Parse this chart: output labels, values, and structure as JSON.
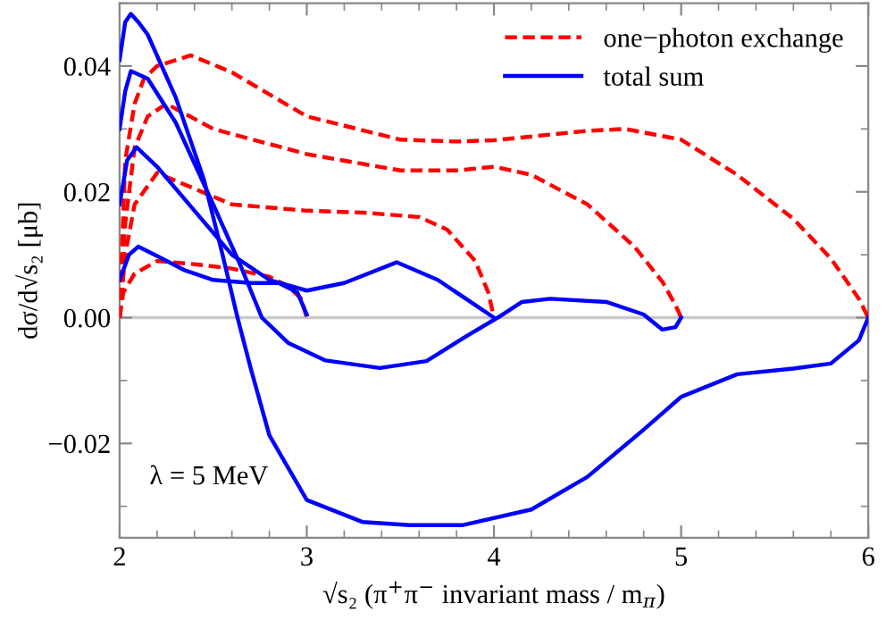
{
  "chart_data": {
    "type": "line",
    "xlabel": "√s₂ (π$^{+}$π$^{−}$ invariant mass / m$_{π}$)",
    "ylabel": "dσ/d√s₂ [μb]",
    "xlim": [
      2,
      6
    ],
    "ylim": [
      -0.035,
      0.05
    ],
    "xticks": [
      2,
      3,
      4,
      5,
      6
    ],
    "yticks": [
      {
        "value": -0.02,
        "label": "−0.02"
      },
      {
        "value": 0,
        "label": "0.00"
      },
      {
        "value": 0.02,
        "label": "0.02"
      },
      {
        "value": 0.04,
        "label": "0.04"
      }
    ],
    "legend": "top right",
    "grid": false,
    "ref_lines": [
      {
        "axis": "y",
        "value": 0,
        "color": "#c8c8c8"
      }
    ],
    "annotations": [
      {
        "text": "λ = 5 MeV"
      }
    ],
    "series": [
      {
        "name": "one−photon exchange",
        "color": "#ff0000",
        "line_style": "dashed",
        "x": [
          2,
          2.03,
          2.08,
          2.13,
          2.2,
          2.38,
          2.6,
          3.0,
          3.5,
          3.8,
          4.0,
          4.5,
          4.7,
          5.0,
          5.3,
          5.6,
          5.8,
          5.95,
          6
        ],
        "values": [
          0,
          0.025,
          0.034,
          0.038,
          0.04,
          0.0417,
          0.039,
          0.032,
          0.0283,
          0.028,
          0.0282,
          0.0297,
          0.03,
          0.0283,
          0.0227,
          0.0157,
          0.0094,
          0.003,
          0
        ]
      },
      {
        "color": "#ff0000",
        "line_style": "dashed",
        "x": [
          2,
          2.03,
          2.08,
          2.15,
          2.25,
          2.5,
          3.0,
          3.5,
          3.8,
          4.0,
          4.2,
          4.5,
          4.75,
          4.9,
          4.97,
          5
        ],
        "values": [
          0,
          0.015,
          0.027,
          0.032,
          0.034,
          0.03,
          0.026,
          0.0234,
          0.0234,
          0.024,
          0.0227,
          0.018,
          0.0113,
          0.0057,
          0.002,
          0
        ]
      },
      {
        "color": "#ff0000",
        "line_style": "dashed",
        "x": [
          2,
          2.03,
          2.08,
          2.2,
          2.4,
          2.6,
          3.0,
          3.3,
          3.6,
          3.75,
          3.9,
          3.97,
          4
        ],
        "values": [
          0,
          0.01,
          0.018,
          0.023,
          0.0205,
          0.018,
          0.017,
          0.0167,
          0.016,
          0.014,
          0.009,
          0.004,
          0
        ]
      },
      {
        "color": "#ff0000",
        "line_style": "dashed",
        "x": [
          2,
          2.02,
          2.08,
          2.2,
          2.4,
          2.6,
          2.8,
          2.9,
          2.97,
          3
        ],
        "values": [
          0,
          0.004,
          0.007,
          0.009,
          0.0085,
          0.0078,
          0.0065,
          0.005,
          0.003,
          0
        ]
      },
      {
        "name": "total sum",
        "color": "#0000ff",
        "line_style": "solid",
        "x": [
          2,
          2.03,
          2.06,
          2.1,
          2.15,
          2.3,
          2.45,
          2.55,
          2.63,
          2.7,
          2.8,
          3.0,
          3.3,
          3.55,
          3.83,
          4.2,
          4.5,
          4.8,
          5.0,
          5.3,
          5.6,
          5.8,
          5.95,
          6
        ],
        "values": [
          0.041,
          0.047,
          0.0483,
          0.047,
          0.045,
          0.035,
          0.022,
          0.01,
          0,
          -0.008,
          -0.0187,
          -0.029,
          -0.0325,
          -0.033,
          -0.033,
          -0.0305,
          -0.0253,
          -0.0178,
          -0.0126,
          -0.009,
          -0.0081,
          -0.0073,
          -0.0036,
          0
        ]
      },
      {
        "color": "#0000ff",
        "line_style": "solid",
        "x": [
          2,
          2.03,
          2.06,
          2.15,
          2.3,
          2.5,
          2.65,
          2.76,
          2.9,
          3.1,
          3.39,
          3.64,
          3.85,
          4.02,
          4.15,
          4.3,
          4.6,
          4.8,
          4.9,
          4.97,
          5
        ],
        "values": [
          0.03,
          0.036,
          0.0392,
          0.038,
          0.031,
          0.018,
          0.008,
          0,
          -0.004,
          -0.0068,
          -0.008,
          -0.0069,
          -0.003,
          0,
          0.0025,
          0.003,
          0.0025,
          0.0005,
          -0.0019,
          -0.0015,
          0
        ]
      },
      {
        "color": "#0000ff",
        "line_style": "solid",
        "x": [
          2,
          2.04,
          2.09,
          2.2,
          2.4,
          2.6,
          2.8,
          3.0,
          3.2,
          3.48,
          3.7,
          3.9,
          4
        ],
        "values": [
          0.018,
          0.025,
          0.0271,
          0.024,
          0.017,
          0.01,
          0.006,
          0.0043,
          0.0055,
          0.0088,
          0.006,
          0.002,
          0
        ]
      },
      {
        "color": "#0000ff",
        "line_style": "solid",
        "x": [
          2,
          2.05,
          2.1,
          2.2,
          2.35,
          2.5,
          2.7,
          2.85,
          2.95,
          3
        ],
        "values": [
          0.006,
          0.01,
          0.0113,
          0.0098,
          0.0075,
          0.006,
          0.0055,
          0.0055,
          0.004,
          0.0005
        ]
      }
    ]
  }
}
